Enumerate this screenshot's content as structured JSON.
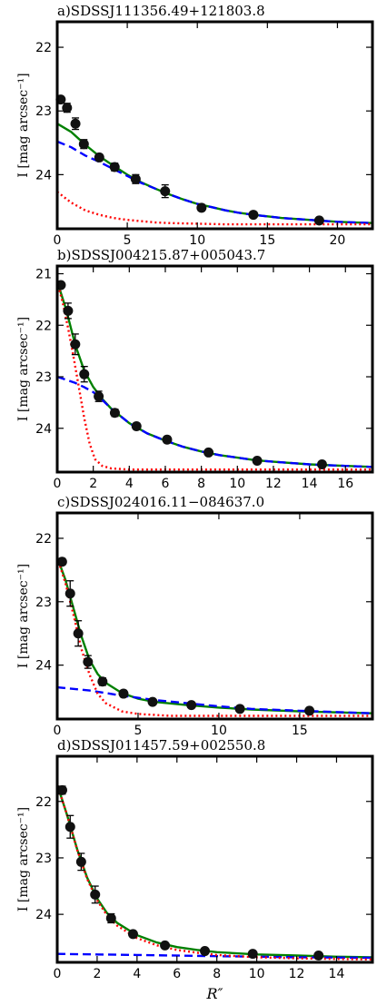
{
  "chart_data": [
    {
      "type": "scatter",
      "title": "a)SDSSJ111356.49+121803.8",
      "ylabel": "I [mag arcsec⁻¹]",
      "xlabel": "",
      "xlim": [
        0,
        22.5
      ],
      "ylim": [
        24.85,
        21.6
      ],
      "xticks": [
        0,
        5,
        10,
        15,
        20
      ],
      "yticks": [
        22,
        23,
        24
      ],
      "grid": false,
      "points": {
        "x": [
          0.25,
          0.7,
          1.3,
          1.9,
          3.0,
          4.1,
          5.6,
          7.7,
          10.3,
          14.0,
          18.7
        ],
        "y": [
          22.82,
          22.95,
          23.2,
          23.52,
          23.73,
          23.88,
          24.07,
          24.26,
          24.52,
          24.63,
          24.72
        ],
        "yerr": [
          0.03,
          0.07,
          0.09,
          0.07,
          0.05,
          0.06,
          0.07,
          0.1,
          0.05,
          0.04,
          0.04
        ]
      },
      "series": [
        {
          "role": "total",
          "color": "#008000",
          "style": "solid",
          "x": [
            0,
            1,
            2,
            3,
            4,
            5,
            6,
            7,
            8,
            9,
            10,
            11,
            12,
            13,
            14,
            16,
            18,
            20,
            22.5
          ],
          "y": [
            23.2,
            23.33,
            23.53,
            23.71,
            23.86,
            24.0,
            24.12,
            24.22,
            24.31,
            24.39,
            24.46,
            24.51,
            24.56,
            24.6,
            24.63,
            24.68,
            24.71,
            24.74,
            24.76
          ]
        },
        {
          "role": "disk",
          "color": "#0000ff",
          "style": "dashed",
          "x": [
            0,
            1,
            2,
            3,
            4,
            5,
            6,
            7,
            8,
            9,
            10,
            11,
            12,
            13,
            14,
            16,
            18,
            20,
            22.5
          ],
          "y": [
            23.48,
            23.57,
            23.7,
            23.8,
            23.91,
            24.02,
            24.13,
            24.22,
            24.31,
            24.39,
            24.46,
            24.51,
            24.56,
            24.6,
            24.63,
            24.68,
            24.71,
            24.74,
            24.76
          ]
        },
        {
          "role": "bulge",
          "color": "#ff0000",
          "style": "dotted",
          "x": [
            0,
            1,
            2,
            3,
            4,
            5,
            6,
            7,
            8,
            10,
            12,
            15,
            18,
            22.5
          ],
          "y": [
            24.27,
            24.44,
            24.56,
            24.63,
            24.68,
            24.71,
            24.73,
            24.75,
            24.76,
            24.77,
            24.78,
            24.78,
            24.78,
            24.78
          ]
        }
      ]
    },
    {
      "type": "scatter",
      "title": "b)SDSSJ004215.87+005043.7",
      "ylabel": "I [mag arcsec⁻¹]",
      "xlabel": "",
      "xlim": [
        0,
        17.5
      ],
      "ylim": [
        24.85,
        20.85
      ],
      "xticks": [
        0,
        2,
        4,
        6,
        8,
        10,
        12,
        14,
        16
      ],
      "yticks": [
        21,
        22,
        23,
        24
      ],
      "grid": false,
      "points": {
        "x": [
          0.2,
          0.6,
          1.0,
          1.5,
          2.3,
          3.2,
          4.4,
          6.1,
          8.4,
          11.1,
          14.7
        ],
        "y": [
          21.22,
          21.72,
          22.37,
          22.95,
          23.38,
          23.7,
          23.96,
          24.22,
          24.47,
          24.63,
          24.7
        ],
        "yerr": [
          0.05,
          0.15,
          0.2,
          0.15,
          0.1,
          0.07,
          0.06,
          0.06,
          0.04,
          0.04,
          0.04
        ]
      },
      "series": [
        {
          "role": "total",
          "color": "#008000",
          "style": "solid",
          "x": [
            0,
            0.5,
            1,
            1.5,
            2,
            2.5,
            3,
            4,
            5,
            6,
            7,
            8,
            9,
            10,
            11,
            12,
            14,
            16,
            17.5
          ],
          "y": [
            21.15,
            21.7,
            22.38,
            22.88,
            23.2,
            23.43,
            23.62,
            23.9,
            24.1,
            24.24,
            24.36,
            24.45,
            24.52,
            24.57,
            24.62,
            24.65,
            24.7,
            24.73,
            24.75
          ]
        },
        {
          "role": "disk",
          "color": "#0000ff",
          "style": "dashed",
          "x": [
            0,
            0.5,
            1,
            1.5,
            2,
            2.5,
            3,
            4,
            5,
            6,
            7,
            8,
            9,
            10,
            11,
            12,
            14,
            16,
            17.5
          ],
          "y": [
            23.0,
            23.06,
            23.12,
            23.2,
            23.3,
            23.45,
            23.62,
            23.9,
            24.1,
            24.24,
            24.36,
            24.45,
            24.52,
            24.57,
            24.62,
            24.65,
            24.7,
            24.73,
            24.75
          ]
        },
        {
          "role": "bulge",
          "color": "#ff0000",
          "style": "dotted",
          "x": [
            0,
            0.3,
            0.6,
            0.9,
            1.2,
            1.5,
            1.8,
            2.1,
            2.5,
            3,
            4,
            6,
            10,
            17.5
          ],
          "y": [
            21.15,
            21.55,
            22.05,
            22.6,
            23.2,
            23.8,
            24.3,
            24.6,
            24.73,
            24.78,
            24.8,
            24.8,
            24.8,
            24.8
          ]
        }
      ]
    },
    {
      "type": "scatter",
      "title": "c)SDSSJ024016.11−084637.0",
      "ylabel": "I [mag arcsec⁻¹]",
      "xlabel": "",
      "xlim": [
        0,
        19.5
      ],
      "ylim": [
        24.85,
        21.6
      ],
      "xticks": [
        0,
        5,
        10,
        15
      ],
      "yticks": [
        22,
        23,
        24
      ],
      "grid": false,
      "points": {
        "x": [
          0.3,
          0.8,
          1.3,
          1.9,
          2.8,
          4.1,
          5.9,
          8.3,
          11.3,
          15.6
        ],
        "y": [
          22.37,
          22.87,
          23.5,
          23.95,
          24.26,
          24.45,
          24.58,
          24.63,
          24.69,
          24.72
        ],
        "yerr": [
          0.05,
          0.2,
          0.2,
          0.1,
          0.06,
          0.05,
          0.04,
          0.04,
          0.04,
          0.04
        ]
      },
      "series": [
        {
          "role": "total",
          "color": "#008000",
          "style": "solid",
          "x": [
            0,
            0.5,
            1,
            1.5,
            2,
            2.5,
            3,
            4,
            5,
            6,
            8,
            10,
            12,
            15,
            19.5
          ],
          "y": [
            22.3,
            22.65,
            23.1,
            23.55,
            23.92,
            24.14,
            24.28,
            24.44,
            24.53,
            24.58,
            24.63,
            24.67,
            24.7,
            24.73,
            24.76
          ]
        },
        {
          "role": "disk",
          "color": "#0000ff",
          "style": "dashed",
          "x": [
            0,
            2,
            4,
            6,
            8,
            10,
            12,
            15,
            19.5
          ],
          "y": [
            24.35,
            24.4,
            24.48,
            24.55,
            24.6,
            24.65,
            24.69,
            24.72,
            24.76
          ]
        },
        {
          "role": "bulge",
          "color": "#ff0000",
          "style": "dotted",
          "x": [
            0,
            0.5,
            1,
            1.5,
            2,
            2.5,
            3,
            4,
            5,
            7,
            10,
            19.5
          ],
          "y": [
            22.3,
            22.7,
            23.2,
            23.75,
            24.15,
            24.45,
            24.6,
            24.73,
            24.77,
            24.8,
            24.8,
            24.8
          ]
        }
      ]
    },
    {
      "type": "scatter",
      "title": "d)SDSSJ011457.59+002550.8",
      "ylabel": "I [mag arcsec⁻¹]",
      "xlabel": "R″",
      "xlim": [
        0,
        15.8
      ],
      "ylim": [
        24.85,
        21.2
      ],
      "xticks": [
        0,
        2,
        4,
        6,
        8,
        10,
        12,
        14
      ],
      "yticks": [
        22,
        23,
        24
      ],
      "grid": false,
      "points": {
        "x": [
          0.25,
          0.65,
          1.2,
          1.9,
          2.7,
          3.8,
          5.4,
          7.4,
          9.8,
          13.1
        ],
        "y": [
          21.8,
          22.45,
          23.07,
          23.65,
          24.07,
          24.35,
          24.55,
          24.65,
          24.7,
          24.73
        ],
        "yerr": [
          0.07,
          0.2,
          0.15,
          0.15,
          0.08,
          0.05,
          0.04,
          0.04,
          0.04,
          0.04
        ]
      },
      "series": [
        {
          "role": "total",
          "color": "#008000",
          "style": "solid",
          "x": [
            0,
            0.5,
            1,
            1.5,
            2,
            2.5,
            3,
            4,
            5,
            6,
            7,
            8,
            10,
            12,
            14,
            15.8
          ],
          "y": [
            21.7,
            22.25,
            22.85,
            23.35,
            23.72,
            23.98,
            24.15,
            24.37,
            24.5,
            24.58,
            24.63,
            24.67,
            24.71,
            24.73,
            24.75,
            24.76
          ]
        },
        {
          "role": "disk",
          "color": "#0000ff",
          "style": "dashed",
          "x": [
            0,
            4,
            8,
            12,
            15.8
          ],
          "y": [
            24.7,
            24.72,
            24.74,
            24.76,
            24.77
          ]
        },
        {
          "role": "bulge",
          "color": "#ff0000",
          "style": "dotted",
          "x": [
            0,
            0.5,
            1,
            1.5,
            2,
            2.5,
            3,
            4,
            5,
            6,
            7,
            8,
            10,
            12,
            14,
            15.8
          ],
          "y": [
            21.7,
            22.25,
            22.86,
            23.37,
            23.75,
            24.02,
            24.2,
            24.42,
            24.55,
            24.63,
            24.68,
            24.72,
            24.76,
            24.78,
            24.79,
            24.8
          ]
        }
      ]
    }
  ]
}
